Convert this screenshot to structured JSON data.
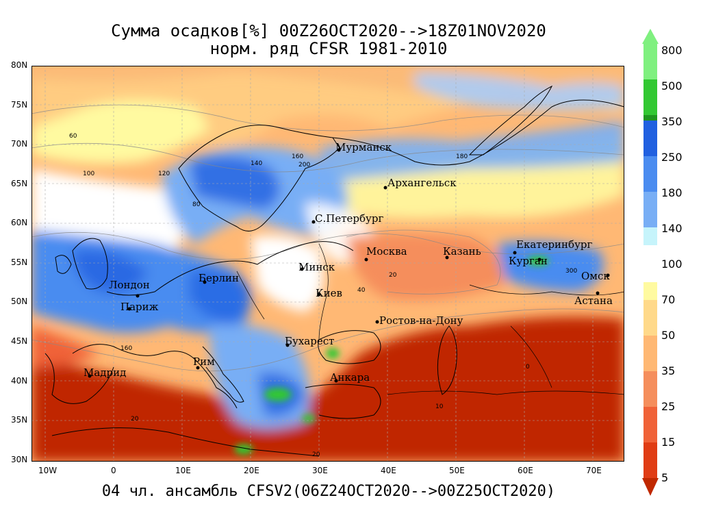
{
  "title_line1": "Сумма осадков[%] 00Z26OCT2020-->18Z01NOV2020",
  "title_line2": "норм. ряд CFSR 1981-2010",
  "bottom_caption": "04 чл. ансамбль CFSV2(06Z24OCT2020-->00Z25OCT2020)",
  "lat_labels": [
    "80N",
    "75N",
    "70N",
    "65N",
    "60N",
    "55N",
    "50N",
    "45N",
    "40N",
    "35N",
    "30N"
  ],
  "lon_labels": [
    "10W",
    "0",
    "10E",
    "20E",
    "30E",
    "40E",
    "50E",
    "60E",
    "70E"
  ],
  "cities": [
    "Мурманск",
    "Архангельск",
    "С.Петербург",
    "Москва",
    "Казань",
    "Екатеринбург",
    "Курган",
    "Омск",
    "Астана",
    "Минск",
    "Киев",
    "Берлин",
    "Лондон",
    "Париж",
    "Ростов-на-Дону",
    "Бухарест",
    "Рим",
    "Мадрид",
    "Анкара"
  ],
  "colorbar": {
    "upper_labels": [
      "800",
      "500",
      "350",
      "250",
      "180",
      "140"
    ],
    "middle_label": "100",
    "lower_labels": [
      "70",
      "50",
      "35",
      "25",
      "15",
      "5"
    ],
    "upper_colors": [
      "#7ff07f",
      "#32c832",
      "#1e961e",
      "#2060e0",
      "#4a8cf0",
      "#78aef5",
      "#a8ccf8",
      "#c6f4fb"
    ],
    "lower_colors": [
      "#fffaa0",
      "#ffd98a",
      "#ffb874",
      "#f58e5c",
      "#f06238",
      "#e03c14",
      "#c02800"
    ]
  },
  "contour_labels": [
    "60",
    "120",
    "100",
    "140",
    "160",
    "200",
    "80",
    "300",
    "20",
    "40",
    "10",
    "0",
    "180"
  ]
}
